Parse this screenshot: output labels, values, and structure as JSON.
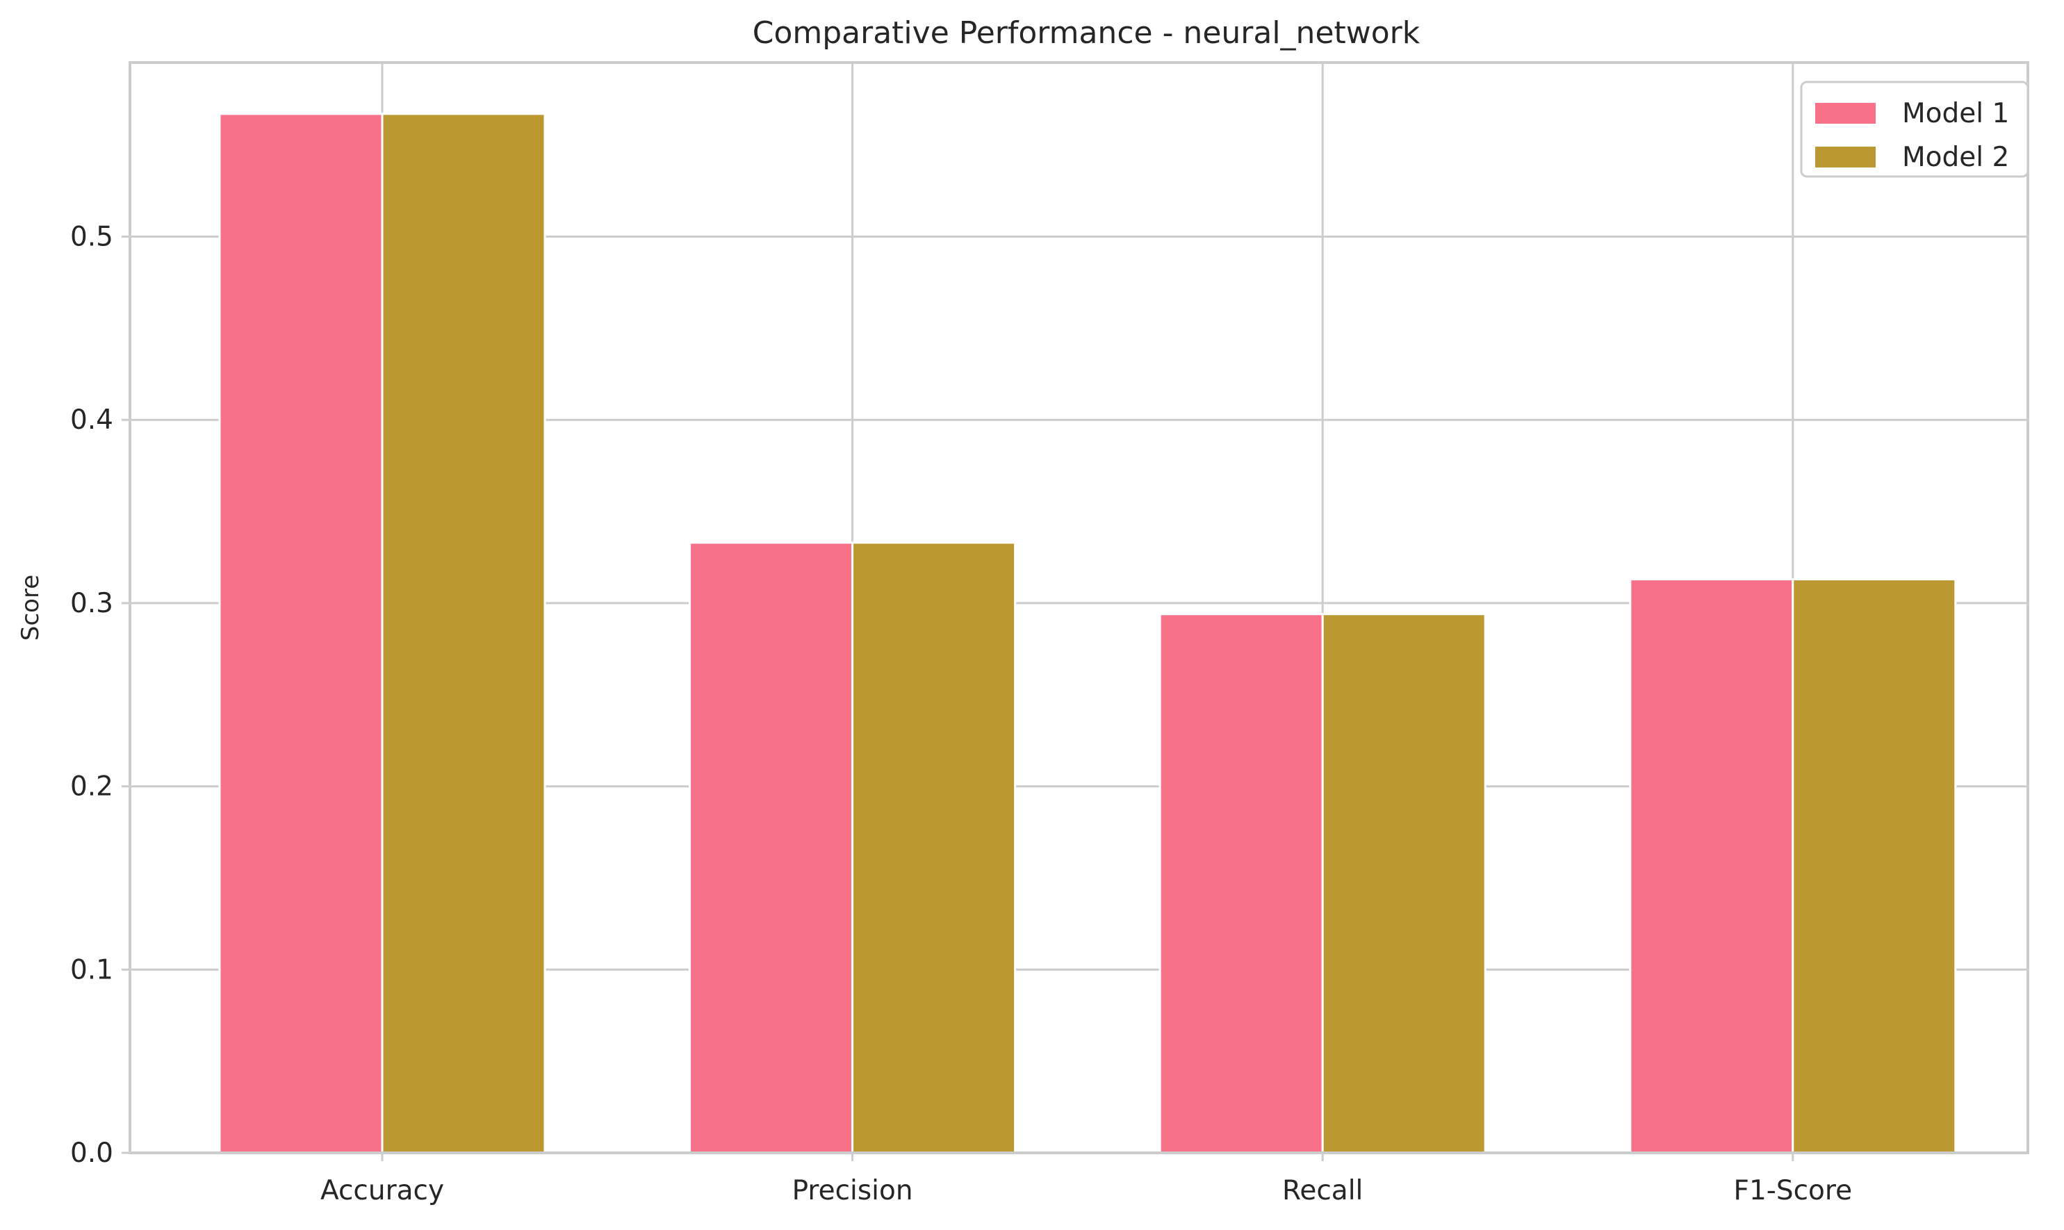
{
  "chart_data": {
    "type": "bar",
    "title": "Comparative Performance - neural_network",
    "xlabel": "",
    "ylabel": "Score",
    "categories": [
      "Accuracy",
      "Precision",
      "Recall",
      "F1-Score"
    ],
    "series": [
      {
        "name": "Model 1",
        "values": [
          0.567,
          0.333,
          0.294,
          0.313
        ],
        "color": "#f77189"
      },
      {
        "name": "Model 2",
        "values": [
          0.567,
          0.333,
          0.294,
          0.313
        ],
        "color": "#bb9832"
      }
    ],
    "ylim": [
      0,
      0.595
    ],
    "yticks": [
      0.0,
      0.1,
      0.2,
      0.3,
      0.4,
      0.5
    ],
    "ytick_labels": [
      "0.0",
      "0.1",
      "0.2",
      "0.3",
      "0.4",
      "0.5"
    ],
    "grid": true,
    "legend_position": "top-right"
  }
}
